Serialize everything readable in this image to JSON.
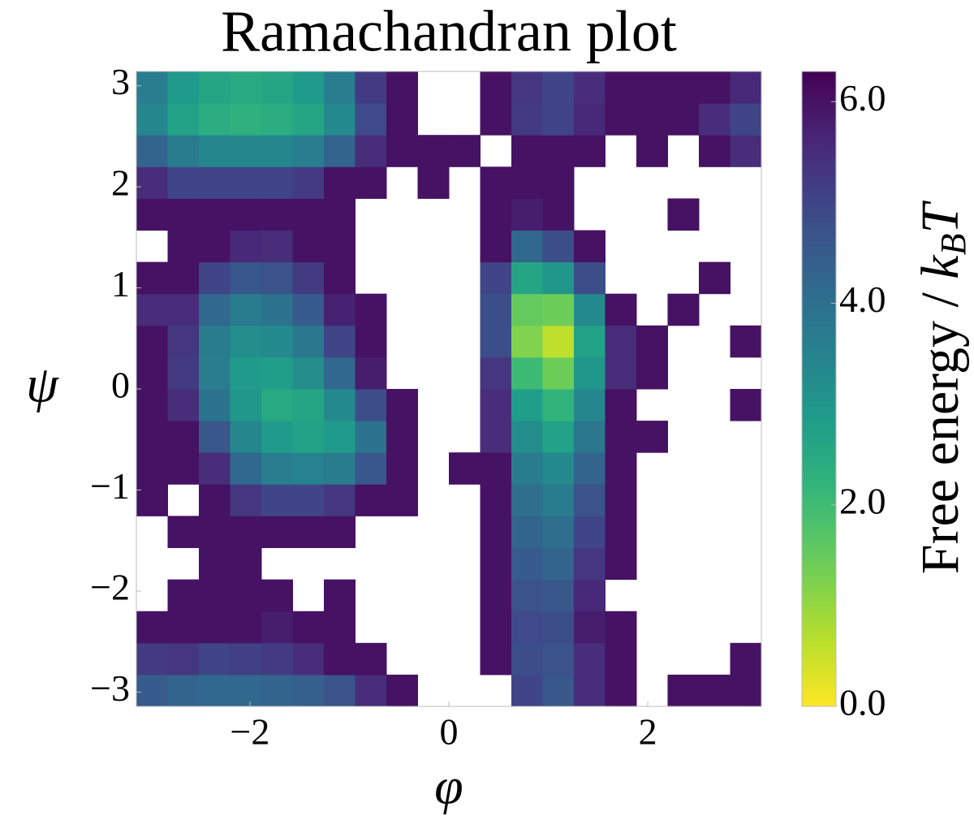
{
  "chart_data": {
    "type": "heatmap",
    "title": "Ramachandran plot",
    "x_label": "φ",
    "y_label": "ψ",
    "colorbar_label": {
      "text": "Free energy / ",
      "symbol": "k",
      "subscript": "B",
      "suffix": "T"
    },
    "colormap": "viridis_r",
    "xlim": [
      -3.1416,
      3.1416
    ],
    "ylim": [
      -3.1416,
      3.1416
    ],
    "clim": [
      0,
      6.3
    ],
    "xticks": [
      {
        "value": -2,
        "label": "−2"
      },
      0,
      2
    ],
    "yticks": [
      {
        "value": -3,
        "label": "−3"
      },
      {
        "value": -2,
        "label": "−2"
      },
      {
        "value": -1,
        "label": "−1"
      },
      0,
      1,
      2,
      3
    ],
    "cticks": [
      {
        "value": 0,
        "label": "0.0"
      },
      {
        "value": 2,
        "label": "2.0"
      },
      {
        "value": 4,
        "label": "4.0"
      },
      {
        "value": 6,
        "label": "6.0"
      }
    ],
    "xbins": [
      -3.1416,
      -2.8274,
      -2.5133,
      -2.1991,
      -1.885,
      -1.5708,
      -1.2566,
      -0.9425,
      -0.6283,
      -0.3142,
      0,
      0.3142,
      0.6283,
      0.9425,
      1.2566,
      1.5708,
      1.885,
      2.1991,
      2.5133,
      2.8274,
      3.1416
    ],
    "ybins": [
      -3.1416,
      -2.8274,
      -2.5133,
      -2.1991,
      -1.885,
      -1.5708,
      -1.2566,
      -0.9425,
      -0.6283,
      -0.3142,
      0,
      0.3142,
      0.6283,
      0.9425,
      1.2566,
      1.5708,
      1.885,
      2.1991,
      2.5133,
      2.8274,
      3.1416
    ],
    "values": [
      [
        4.5,
        4.3,
        4.2,
        4.2,
        4.3,
        4.4,
        4.7,
        5.5,
        6,
        null,
        null,
        null,
        5.0,
        4.6,
        5.5,
        6,
        null,
        6,
        6,
        6
      ],
      [
        5.2,
        5.3,
        5.0,
        5.1,
        5.2,
        5.5,
        6,
        6,
        null,
        null,
        null,
        6,
        4.8,
        4.7,
        5.5,
        6,
        null,
        null,
        null,
        6
      ],
      [
        6,
        6,
        6,
        6,
        5.8,
        6,
        6,
        null,
        null,
        null,
        null,
        6,
        4.9,
        4.8,
        5.8,
        6,
        null,
        null,
        null,
        null
      ],
      [
        null,
        6,
        6,
        6,
        6,
        null,
        6,
        null,
        null,
        null,
        null,
        6,
        4.7,
        4.6,
        5.6,
        null,
        null,
        null,
        null,
        null
      ],
      [
        null,
        null,
        6,
        6,
        null,
        null,
        null,
        null,
        null,
        null,
        null,
        6,
        4.5,
        4.3,
        5.3,
        6,
        null,
        null,
        null,
        null
      ],
      [
        null,
        6,
        6,
        6,
        6,
        6,
        6,
        null,
        null,
        null,
        null,
        6,
        4.3,
        4.0,
        5.0,
        6,
        null,
        null,
        null,
        null
      ],
      [
        6,
        null,
        6,
        5.3,
        5.0,
        5.0,
        5.3,
        6,
        6,
        null,
        null,
        6,
        4.0,
        3.7,
        4.7,
        6,
        null,
        null,
        null,
        null
      ],
      [
        6,
        6,
        5.5,
        4.2,
        3.6,
        3.5,
        3.7,
        4.6,
        6,
        null,
        6,
        6,
        3.7,
        3.3,
        4.3,
        6,
        null,
        null,
        null,
        null
      ],
      [
        6,
        6,
        4.6,
        3.4,
        2.9,
        2.7,
        2.9,
        3.9,
        6,
        null,
        null,
        5.5,
        3.2,
        2.7,
        3.8,
        6,
        6,
        null,
        null,
        null
      ],
      [
        6,
        5.5,
        3.9,
        3.0,
        2.5,
        2.6,
        3.3,
        4.8,
        6,
        null,
        null,
        5.5,
        2.8,
        2.2,
        3.4,
        6,
        null,
        null,
        null,
        6
      ],
      [
        6,
        5.2,
        3.6,
        2.9,
        2.8,
        3.2,
        4.2,
        5.8,
        null,
        null,
        null,
        5.3,
        2.0,
        1.4,
        3.0,
        5.5,
        6,
        null,
        null,
        null
      ],
      [
        6,
        5.3,
        3.7,
        3.2,
        3.3,
        3.8,
        5.0,
        6,
        null,
        null,
        null,
        4.8,
        1.2,
        0.6,
        2.7,
        5.5,
        6,
        null,
        null,
        6
      ],
      [
        5.5,
        5.5,
        4.2,
        3.7,
        3.9,
        4.5,
        5.7,
        6,
        null,
        null,
        null,
        4.8,
        1.5,
        1.4,
        3.3,
        6,
        null,
        6,
        null,
        null
      ],
      [
        6,
        6,
        5.0,
        4.6,
        4.7,
        5.2,
        6,
        null,
        null,
        null,
        null,
        5.0,
        2.6,
        3.0,
        4.8,
        null,
        null,
        null,
        6,
        null
      ],
      [
        null,
        6,
        6,
        5.6,
        5.5,
        6,
        6,
        null,
        null,
        null,
        null,
        6,
        4.2,
        4.8,
        6,
        null,
        null,
        null,
        null,
        null
      ],
      [
        6,
        6,
        6,
        6,
        6,
        6,
        6,
        null,
        null,
        null,
        null,
        6,
        5.8,
        6,
        null,
        null,
        null,
        6,
        null,
        null
      ],
      [
        5.5,
        5.0,
        5.0,
        5.0,
        5.0,
        5.2,
        6,
        6,
        null,
        6,
        null,
        6,
        6,
        6,
        null,
        null,
        null,
        null,
        null,
        null
      ],
      [
        4.3,
        3.7,
        3.4,
        3.4,
        3.4,
        3.6,
        4.3,
        5.5,
        6,
        6,
        6,
        null,
        6,
        6,
        6,
        null,
        6,
        null,
        6,
        5.5
      ],
      [
        3.4,
        2.7,
        2.4,
        2.3,
        2.4,
        2.6,
        3.3,
        4.9,
        6,
        null,
        null,
        6,
        5.2,
        5.0,
        5.6,
        6,
        6,
        6,
        5.5,
        5.0
      ],
      [
        3.6,
        2.9,
        2.6,
        2.5,
        2.6,
        2.9,
        3.6,
        5.2,
        6,
        null,
        null,
        6,
        5.3,
        5.0,
        5.5,
        6,
        6,
        6,
        6,
        5.6
      ]
    ]
  }
}
